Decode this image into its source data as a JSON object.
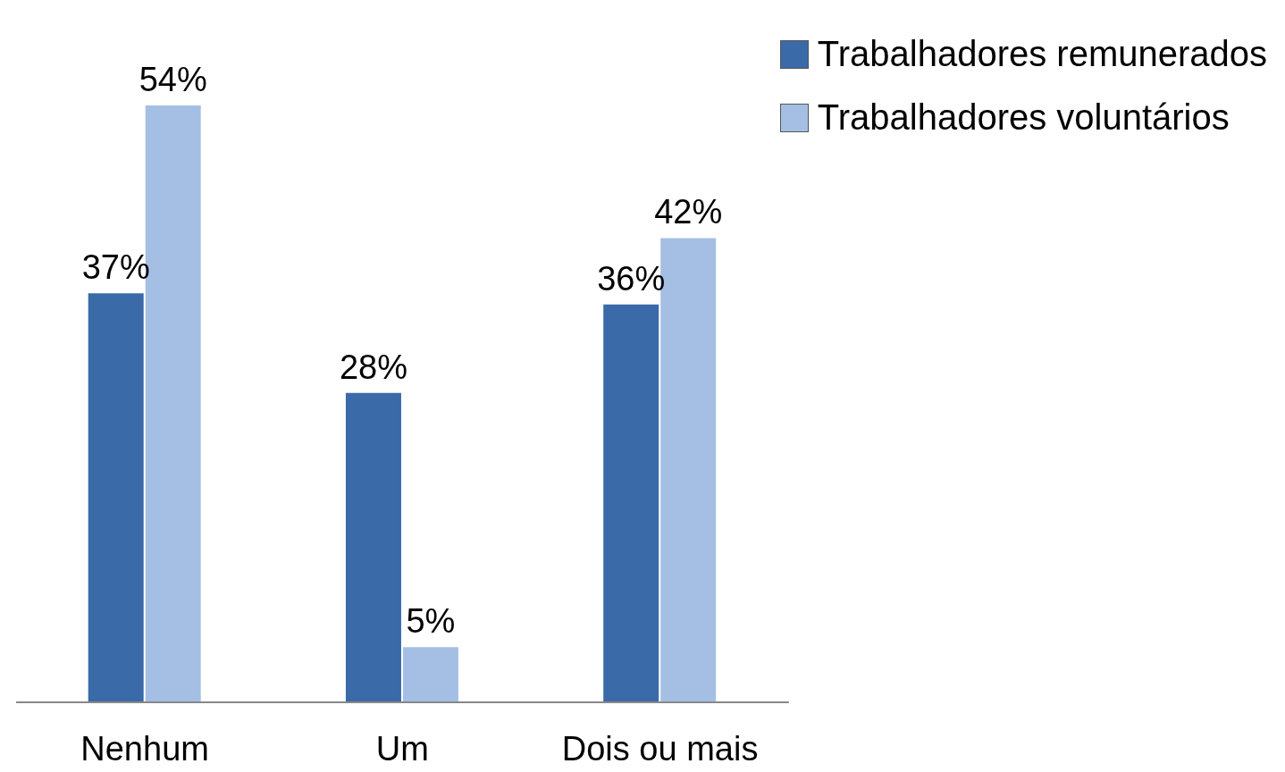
{
  "chart_data": {
    "type": "bar",
    "categories": [
      "Nenhum",
      "Um",
      "Dois ou mais"
    ],
    "series": [
      {
        "name": "Trabalhadores remunerados",
        "color": "#3a6aa8",
        "values": [
          37,
          28,
          36
        ],
        "value_labels": [
          "37%",
          "28%",
          "36%"
        ]
      },
      {
        "name": "Trabalhadores voluntários",
        "color": "#a4bfe3",
        "values": [
          54,
          5,
          42
        ],
        "value_labels": [
          "54%",
          "5%",
          "42%"
        ]
      }
    ],
    "legend": "top right",
    "grid": false
  }
}
